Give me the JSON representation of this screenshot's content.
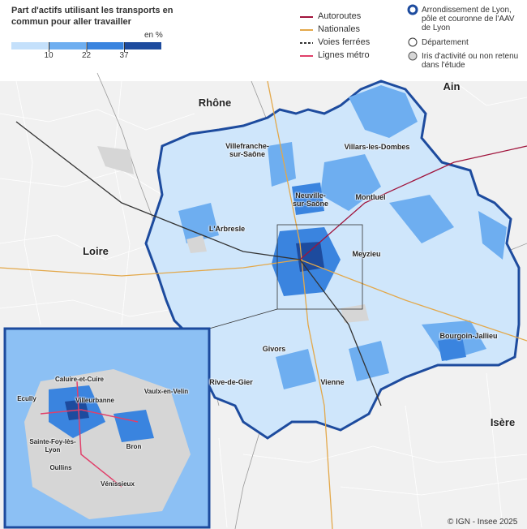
{
  "title": "Part d'actifs utilisant les transports en commun pour aller travailler",
  "scale": {
    "unit": "en %",
    "breaks": [
      10,
      22,
      37
    ],
    "colors": [
      "#c4e0fb",
      "#6eaef0",
      "#3a84df",
      "#1d4b9e"
    ]
  },
  "lines": [
    {
      "label": "Autoroutes",
      "color": "#a0143c"
    },
    {
      "label": "Nationales",
      "color": "#e3a84a"
    },
    {
      "label": "Voies ferrées",
      "color": "#333333"
    },
    {
      "label": "Lignes métro",
      "color": "#e0406a"
    }
  ],
  "areas": [
    {
      "label": "Arrondissement de Lyon, pôle et couronne de l'AAV de Lyon"
    },
    {
      "label": "Département"
    },
    {
      "label": "Iris d'activité ou non retenu dans l'étude"
    }
  ],
  "departments": [
    "Rhône",
    "Ain",
    "Loire",
    "Isère"
  ],
  "towns": [
    "Villefranche-sur-Saône",
    "Villars-les-Dombes",
    "Neuville-sur-Saône",
    "Montluel",
    "L'Arbresle",
    "Meyzieu",
    "Bourgoin-Jallieu",
    "Givors",
    "Vienne",
    "Rive-de-Gier"
  ],
  "inset_towns": [
    "Caluire-et-Cuire",
    "Villeurbanne",
    "Vaulx-en-Velin",
    "Ecully",
    "Sainte-Foy-lès-Lyon",
    "Bron",
    "Oullins",
    "Vénissieux"
  ],
  "credit": "© IGN - Insee 2025"
}
